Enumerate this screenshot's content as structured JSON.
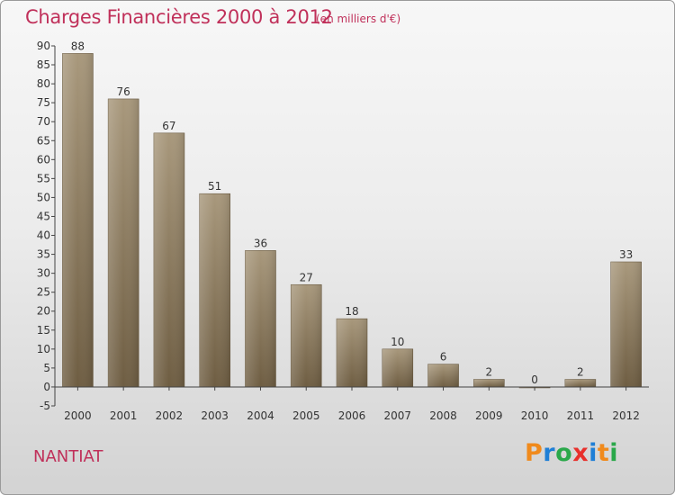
{
  "title": "Charges Financières 2000 à 2012",
  "subtitle": "(en milliers d'€)",
  "commune": "NANTIAT",
  "brand": {
    "letters": [
      "P",
      "r",
      "o",
      "x",
      "i",
      "t",
      "i"
    ],
    "colors": [
      "#f08a1c",
      "#1f7fd6",
      "#2aa84a",
      "#e8302c",
      "#1f7fd6",
      "#f08a1c",
      "#2aa84a"
    ]
  },
  "colors": {
    "accent": "#c0305a",
    "bar_top": "#a8987c",
    "bar_bottom": "#6e5d42"
  },
  "chart_data": {
    "type": "bar",
    "title": "Charges Financières 2000 à 2012",
    "subtitle": "(en milliers d'€)",
    "categories": [
      "2000",
      "2001",
      "2002",
      "2003",
      "2004",
      "2005",
      "2006",
      "2007",
      "2008",
      "2009",
      "2010",
      "2011",
      "2012"
    ],
    "values": [
      88,
      76,
      67,
      51,
      36,
      27,
      18,
      10,
      6,
      2,
      0,
      2,
      33
    ],
    "ylim": [
      -5,
      90
    ],
    "yticks": [
      -5,
      0,
      5,
      10,
      15,
      20,
      25,
      30,
      35,
      40,
      45,
      50,
      55,
      60,
      65,
      70,
      75,
      80,
      85,
      90
    ],
    "grid": false,
    "data_labels": true
  }
}
